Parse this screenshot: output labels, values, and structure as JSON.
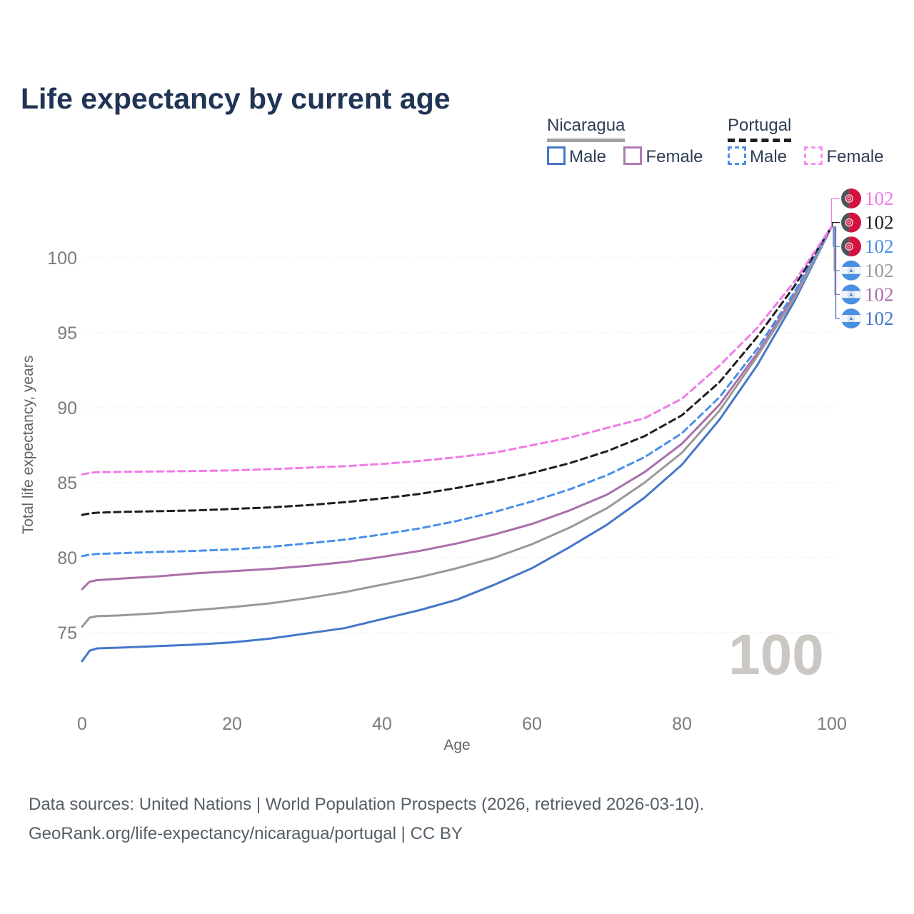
{
  "title": "Life expectancy by current age",
  "watermark": "100",
  "legend": {
    "groups": [
      {
        "label": "Nicaragua",
        "style": "solid",
        "underline_color": "#a3a3a3",
        "items": [
          {
            "label": "Male",
            "color": "#4677c8",
            "dashed": false
          },
          {
            "label": "Female",
            "color": "#b07ab2",
            "dashed": false
          }
        ]
      },
      {
        "label": "Portugal",
        "style": "dashed",
        "underline_color": "#1f1f1f",
        "items": [
          {
            "label": "Male",
            "color": "#4a90e8",
            "dashed": true
          },
          {
            "label": "Female",
            "color": "#f591ee",
            "dashed": true
          }
        ]
      }
    ]
  },
  "footer": {
    "line1": "Data sources: United Nations | World Population Prospects (2026, retrieved 2026-03-10).",
    "line2": "GeoRank.org/life-expectancy/nicaragua/portugal | CC BY"
  },
  "chart_data": {
    "type": "line",
    "title": "Life expectancy by current age",
    "xlabel": "Age",
    "ylabel": "Total life expectancy, years",
    "x_ticks": [
      0,
      20,
      40,
      60,
      80,
      100
    ],
    "y_ticks": [
      75,
      80,
      85,
      90,
      95,
      100
    ],
    "xlim": [
      0,
      100
    ],
    "ylim": [
      72.5,
      103
    ],
    "grid": "horizontal-dotted",
    "legend_position": "top-right",
    "end_label_value": "102",
    "x": [
      0,
      1,
      2,
      5,
      10,
      15,
      20,
      25,
      30,
      35,
      40,
      45,
      50,
      55,
      60,
      65,
      70,
      75,
      80,
      85,
      90,
      95,
      100
    ],
    "series": [
      {
        "name": "Portugal Female",
        "country": "Portugal",
        "sex": "Female",
        "color": "#f07ae8",
        "dashed": true,
        "label_color": "#f07ae8",
        "label_row": 0,
        "y": [
          85.55,
          85.65,
          85.7,
          85.72,
          85.75,
          85.78,
          85.82,
          85.9,
          86.0,
          86.1,
          86.25,
          86.45,
          86.7,
          87.0,
          87.5,
          88.0,
          88.65,
          89.3,
          90.6,
          92.8,
          95.3,
          98.4,
          102.1
        ]
      },
      {
        "name": "Portugal Both sexes",
        "country": "Portugal",
        "sex": "Both",
        "color": "#1f1f1f",
        "dashed": true,
        "label_color": "#1f1f1f",
        "label_row": 1,
        "y": [
          82.85,
          82.95,
          83.0,
          83.05,
          83.1,
          83.15,
          83.25,
          83.35,
          83.5,
          83.7,
          83.95,
          84.25,
          84.65,
          85.1,
          85.65,
          86.3,
          87.1,
          88.1,
          89.5,
          91.7,
          94.7,
          98.1,
          102.1
        ]
      },
      {
        "name": "Portugal Male",
        "country": "Portugal",
        "sex": "Male",
        "color": "#4a90e8",
        "dashed": true,
        "label_color": "#4a90e8",
        "label_row": 2,
        "y": [
          80.1,
          80.2,
          80.25,
          80.3,
          80.38,
          80.45,
          80.55,
          80.72,
          80.95,
          81.2,
          81.55,
          81.95,
          82.45,
          83.05,
          83.75,
          84.55,
          85.5,
          86.7,
          88.3,
          90.7,
          93.9,
          97.7,
          102.1
        ]
      },
      {
        "name": "Nicaragua Both sexes",
        "country": "Nicaragua",
        "sex": "Both",
        "color": "#999999",
        "dashed": false,
        "label_color": "#9a9a9a",
        "label_row": 3,
        "y": [
          75.4,
          76.0,
          76.1,
          76.15,
          76.3,
          76.5,
          76.7,
          76.95,
          77.3,
          77.7,
          78.2,
          78.7,
          79.3,
          80.0,
          80.9,
          82.0,
          83.3,
          85.0,
          87.0,
          89.8,
          93.4,
          97.3,
          102.1
        ]
      },
      {
        "name": "Nicaragua Female",
        "country": "Nicaragua",
        "sex": "Female",
        "color": "#ab6fac",
        "dashed": false,
        "label_color": "#ab6fac",
        "label_row": 4,
        "y": [
          77.9,
          78.4,
          78.5,
          78.6,
          78.75,
          78.95,
          79.1,
          79.25,
          79.45,
          79.7,
          80.05,
          80.45,
          80.95,
          81.55,
          82.25,
          83.15,
          84.2,
          85.7,
          87.6,
          90.2,
          93.6,
          97.5,
          102.1
        ]
      },
      {
        "name": "Nicaragua Male",
        "country": "Nicaragua",
        "sex": "Male",
        "color": "#4677c8",
        "dashed": false,
        "label_color": "#4677c8",
        "label_row": 5,
        "y": [
          73.1,
          73.8,
          73.95,
          74.0,
          74.1,
          74.2,
          74.35,
          74.6,
          74.95,
          75.3,
          75.9,
          76.5,
          77.2,
          78.2,
          79.3,
          80.7,
          82.2,
          84.0,
          86.2,
          89.2,
          92.8,
          97.1,
          102.1
        ]
      }
    ]
  }
}
